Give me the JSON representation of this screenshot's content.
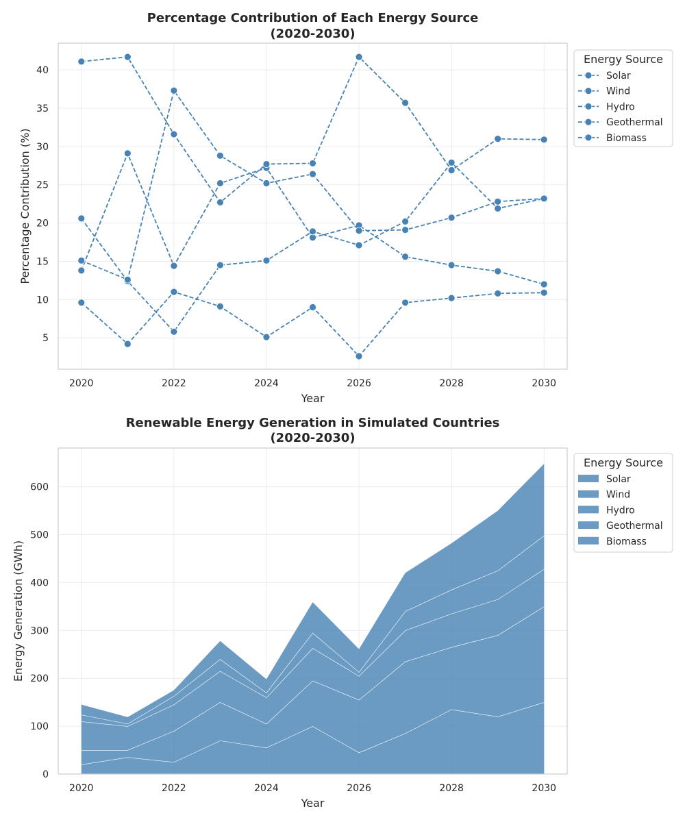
{
  "colors": {
    "series": "#4682b4",
    "grid": "#ebebeb",
    "frame": "#cccccc",
    "text": "#262626"
  },
  "chart_data": [
    {
      "type": "line",
      "title_line1": "Percentage Contribution of Each Energy Source",
      "title_line2": "(2020-2030)",
      "xlabel": "Year",
      "ylabel": "Percentage Contribution (%)",
      "xlim": [
        2019.5,
        2030.5
      ],
      "ylim": [
        0.9,
        43.5
      ],
      "xticks": [
        2020,
        2022,
        2024,
        2026,
        2028,
        2030
      ],
      "yticks": [
        5,
        10,
        15,
        20,
        25,
        30,
        35,
        40
      ],
      "grid": true,
      "line_style": "dashed",
      "marker": "circle",
      "legend_title": "Energy Source",
      "legend_position": "outside-top-right",
      "x": [
        2020,
        2021,
        2022,
        2023,
        2024,
        2025,
        2026,
        2027,
        2028,
        2029,
        2030
      ],
      "series": [
        {
          "name": "Solar",
          "values": [
            13.8,
            29.1,
            14.4,
            25.2,
            27.2,
            18.1,
            19.7,
            15.6,
            14.5,
            13.7,
            12.0
          ]
        },
        {
          "name": "Wind",
          "values": [
            20.6,
            12.4,
            5.8,
            14.5,
            15.1,
            18.9,
            17.1,
            20.2,
            27.9,
            21.9,
            23.2
          ]
        },
        {
          "name": "Hydro",
          "values": [
            41.1,
            41.7,
            31.6,
            22.7,
            27.7,
            27.8,
            41.7,
            35.7,
            26.9,
            31.0,
            30.9
          ]
        },
        {
          "name": "Geothermal",
          "values": [
            9.6,
            4.2,
            11.0,
            9.1,
            5.1,
            9.0,
            2.6,
            9.6,
            10.2,
            10.8,
            10.9
          ]
        },
        {
          "name": "Biomass",
          "values": [
            15.1,
            12.6,
            37.3,
            28.8,
            25.2,
            26.4,
            19.0,
            19.1,
            20.7,
            22.8,
            23.2
          ]
        }
      ]
    },
    {
      "type": "area",
      "stacked": true,
      "title_line1": "Renewable Energy Generation in Simulated Countries",
      "title_line2": "(2020-2030)",
      "xlabel": "Year",
      "ylabel": "Energy Generation (GWh)",
      "xlim": [
        2019.5,
        2030.5
      ],
      "ylim": [
        0,
        681
      ],
      "xticks": [
        2020,
        2022,
        2024,
        2026,
        2028,
        2030
      ],
      "yticks": [
        0,
        100,
        200,
        300,
        400,
        500,
        600
      ],
      "grid": true,
      "legend_title": "Energy Source",
      "legend_position": "outside-top-right",
      "x": [
        2020,
        2021,
        2022,
        2023,
        2024,
        2025,
        2026,
        2027,
        2028,
        2029,
        2030
      ],
      "series": [
        {
          "name": "Solar",
          "values": [
            20,
            35,
            25,
            70,
            55,
            100,
            45,
            85,
            135,
            120,
            150
          ]
        },
        {
          "name": "Wind",
          "values": [
            30,
            15,
            65,
            80,
            50,
            95,
            110,
            150,
            130,
            170,
            200
          ]
        },
        {
          "name": "Hydro",
          "values": [
            60,
            50,
            55,
            65,
            55,
            68,
            50,
            65,
            70,
            75,
            78
          ]
        },
        {
          "name": "Geothermal",
          "values": [
            14,
            5,
            18,
            25,
            10,
            32,
            8,
            40,
            50,
            60,
            70
          ]
        },
        {
          "name": "Biomass",
          "values": [
            21,
            14,
            12,
            38,
            28,
            64,
            48,
            80,
            97,
            125,
            150
          ]
        }
      ]
    }
  ]
}
